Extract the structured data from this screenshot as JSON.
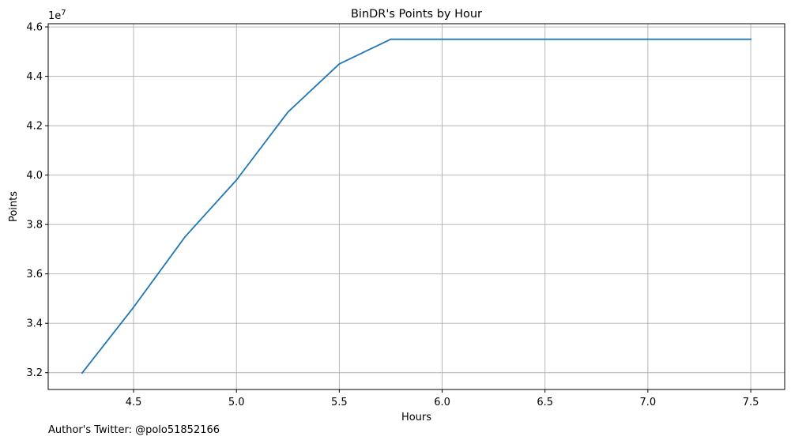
{
  "chart_data": {
    "type": "line",
    "title": "BinDR's Points by Hour",
    "xlabel": "Hours",
    "ylabel": "Points",
    "y_offset_label": "1e7",
    "xlim": [
      4.085,
      7.665
    ],
    "ylim": [
      31320000,
      46130000
    ],
    "grid": true,
    "legend": "none",
    "x_ticks": [
      4.5,
      5.0,
      5.5,
      6.0,
      6.5,
      7.0,
      7.5
    ],
    "y_ticks": [
      3.2,
      3.4,
      3.6,
      3.8,
      4.0,
      4.2,
      4.4,
      4.6
    ],
    "series": [
      {
        "color": "#1f77b4",
        "x": [
          4.25,
          4.5,
          4.75,
          5.0,
          5.25,
          5.5,
          5.75,
          6.0,
          6.25,
          6.5,
          6.75,
          7.0,
          7.25,
          7.5
        ],
        "y": [
          31990000,
          34650000,
          37500000,
          39800000,
          42550000,
          44500000,
          45500000,
          45500000,
          45500000,
          45500000,
          45500000,
          45500000,
          45500000,
          45500000
        ]
      }
    ]
  },
  "footnote": "Author's Twitter: @polo51852166"
}
